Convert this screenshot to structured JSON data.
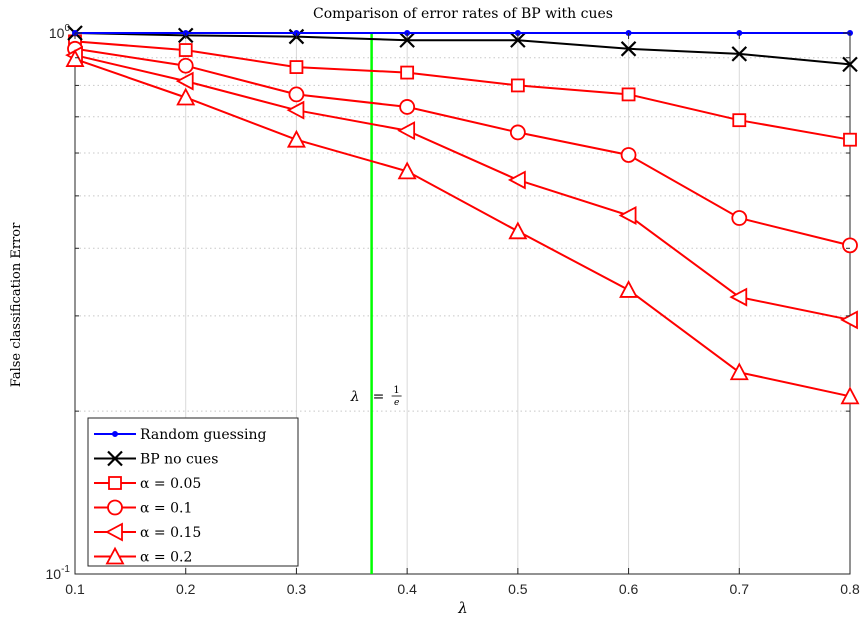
{
  "chart_data": {
    "type": "line",
    "title": "Comparison of error rates of BP with cues",
    "xlabel": "λ",
    "ylabel": "False classification Error",
    "xlim": [
      0.1,
      0.8
    ],
    "ylim": [
      0.1,
      1.0
    ],
    "yscale": "log",
    "grid": true,
    "legend_position": "bottom-left",
    "x_ticks": [
      "0.1",
      "0.2",
      "0.3",
      "0.4",
      "0.5",
      "0.6",
      "0.7",
      "0.8"
    ],
    "y_ticks": [
      {
        "value": 0.1,
        "base": "10",
        "exp": "-1"
      },
      {
        "value": 1.0,
        "base": "10",
        "exp": "0"
      }
    ],
    "x": [
      0.1,
      0.2,
      0.3,
      0.4,
      0.5,
      0.6,
      0.7,
      0.8
    ],
    "series": [
      {
        "name": "Random guessing",
        "color": "#0000ff",
        "marker": "dot",
        "values": [
          1.0,
          1.0,
          1.0,
          1.0,
          1.0,
          1.0,
          1.0,
          1.0
        ]
      },
      {
        "name": "BP no cues",
        "color": "#000000",
        "marker": "x",
        "values": [
          1.0,
          0.99,
          0.985,
          0.97,
          0.97,
          0.935,
          0.915,
          0.875
        ]
      },
      {
        "name": "α = 0.05",
        "color": "#ff0000",
        "marker": "square",
        "values": [
          0.965,
          0.93,
          0.865,
          0.845,
          0.8,
          0.77,
          0.69,
          0.635
        ]
      },
      {
        "name": "α = 0.1",
        "color": "#ff0000",
        "marker": "circle",
        "values": [
          0.935,
          0.87,
          0.77,
          0.73,
          0.655,
          0.595,
          0.455,
          0.405
        ]
      },
      {
        "name": "α = 0.15",
        "color": "#ff0000",
        "marker": "triangle-left",
        "values": [
          0.91,
          0.815,
          0.72,
          0.66,
          0.535,
          0.46,
          0.325,
          0.295
        ]
      },
      {
        "name": "α = 0.2",
        "color": "#ff0000",
        "marker": "triangle-up",
        "values": [
          0.895,
          0.76,
          0.635,
          0.555,
          0.43,
          0.335,
          0.236,
          0.213
        ]
      }
    ],
    "annotations": [
      {
        "type": "vline",
        "x": 0.3679,
        "color": "#00ff00",
        "label": "λ = 1/e"
      }
    ]
  }
}
